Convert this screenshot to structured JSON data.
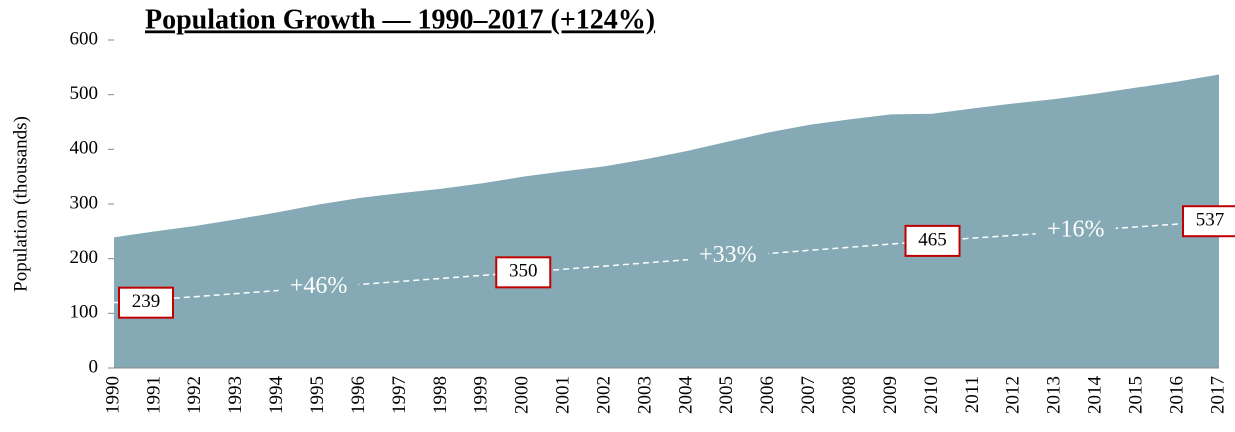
{
  "chart_data": {
    "type": "area",
    "title": "Population Growth — 1990–2017 (+124%)",
    "y_label": "Population (thousands)",
    "categories": [
      "1990",
      "1991",
      "1992",
      "1993",
      "1994",
      "1995",
      "1996",
      "1997",
      "1998",
      "1999",
      "2000",
      "2001",
      "2002",
      "2003",
      "2004",
      "2005",
      "2006",
      "2007",
      "2008",
      "2009",
      "2010",
      "2011",
      "2012",
      "2013",
      "2014",
      "2015",
      "2016",
      "2017"
    ],
    "series": [
      {
        "name": "Population",
        "color": "#85aab5",
        "values": [
          239,
          250,
          260,
          272,
          285,
          299,
          311,
          320,
          328,
          338,
          350,
          360,
          369,
          382,
          397,
          414,
          431,
          445,
          455,
          464,
          465,
          475,
          484,
          492,
          502,
          513,
          524,
          537
        ]
      }
    ],
    "ylim": [
      0,
      600
    ],
    "yticks": [
      0,
      100,
      200,
      300,
      400,
      500,
      600
    ],
    "annotations": [
      {
        "text": "+46%",
        "from": "1990",
        "to": "2000"
      },
      {
        "text": "+33%",
        "from": "2000",
        "to": "2010"
      },
      {
        "text": "+16%",
        "from": "2010",
        "to": "2017"
      }
    ]
  }
}
